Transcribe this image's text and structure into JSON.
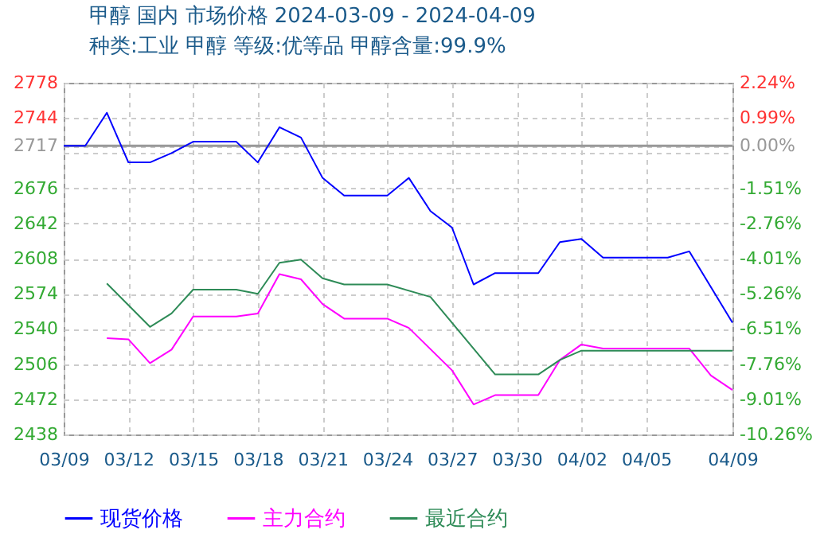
{
  "chart_data": {
    "type": "line",
    "title": "甲醇 国内 市场价格 2024-03-09 - 2024-04-09",
    "subtitle": "种类:工业 甲醇 等级:优等品 甲醇含量:99.9%",
    "series": [
      {
        "name": "现货价格",
        "color": "#0000ff",
        "x": [
          "2024-03-09",
          "2024-03-10",
          "2024-03-11",
          "2024-03-12",
          "2024-03-13",
          "2024-03-14",
          "2024-03-15",
          "2024-03-17",
          "2024-03-18",
          "2024-03-19",
          "2024-03-20",
          "2024-03-21",
          "2024-03-22",
          "2024-03-24",
          "2024-03-25",
          "2024-03-26",
          "2024-03-27",
          "2024-03-28",
          "2024-03-29",
          "2024-03-31",
          "2024-04-01",
          "2024-04-02",
          "2024-04-03",
          "2024-04-06",
          "2024-04-07",
          "2024-04-09"
        ],
        "values": [
          2717,
          2717,
          2749,
          2701,
          2701,
          2710,
          2721,
          2721,
          2701,
          2735,
          2725,
          2686,
          2669,
          2669,
          2686,
          2654,
          2638,
          2583,
          2594,
          2594,
          2624,
          2627,
          2609,
          2609,
          2615,
          2546
        ]
      },
      {
        "name": "主力合约",
        "color": "#ff00ff",
        "x": [
          "2024-03-11",
          "2024-03-12",
          "2024-03-13",
          "2024-03-14",
          "2024-03-15",
          "2024-03-17",
          "2024-03-18",
          "2024-03-19",
          "2024-03-20",
          "2024-03-21",
          "2024-03-22",
          "2024-03-24",
          "2024-03-25",
          "2024-03-27",
          "2024-03-28",
          "2024-03-29",
          "2024-03-31",
          "2024-04-01",
          "2024-04-02",
          "2024-04-03",
          "2024-04-07",
          "2024-04-08",
          "2024-04-09"
        ],
        "values": [
          2531,
          2530,
          2507,
          2520,
          2552,
          2552,
          2555,
          2593,
          2588,
          2564,
          2550,
          2550,
          2541,
          2500,
          2467,
          2476,
          2476,
          2510,
          2525,
          2521,
          2521,
          2495,
          2481
        ]
      },
      {
        "name": "最近合约",
        "color": "#2e8b57",
        "x": [
          "2024-03-11",
          "2024-03-13",
          "2024-03-14",
          "2024-03-15",
          "2024-03-17",
          "2024-03-18",
          "2024-03-19",
          "2024-03-20",
          "2024-03-21",
          "2024-03-22",
          "2024-03-24",
          "2024-03-26",
          "2024-03-29",
          "2024-03-31",
          "2024-04-01",
          "2024-04-02",
          "2024-04-09"
        ],
        "values": [
          2584,
          2542,
          2555,
          2578,
          2578,
          2574,
          2604,
          2607,
          2589,
          2583,
          2583,
          2571,
          2496,
          2496,
          2510,
          2519,
          2519
        ]
      }
    ],
    "xlim": [
      "2024-03-09",
      "2024-04-09"
    ],
    "xticks": [
      {
        "value": "2024-03-09",
        "label": "03/09"
      },
      {
        "value": "2024-03-12",
        "label": "03/12"
      },
      {
        "value": "2024-03-15",
        "label": "03/15"
      },
      {
        "value": "2024-03-18",
        "label": "03/18"
      },
      {
        "value": "2024-03-21",
        "label": "03/21"
      },
      {
        "value": "2024-03-24",
        "label": "03/24"
      },
      {
        "value": "2024-03-27",
        "label": "03/27"
      },
      {
        "value": "2024-03-30",
        "label": "03/30"
      },
      {
        "value": "2024-04-02",
        "label": "04/02"
      },
      {
        "value": "2024-04-05",
        "label": "04/05"
      },
      {
        "value": "2024-04-09",
        "label": "04/09"
      }
    ],
    "ylim": [
      2438,
      2778
    ],
    "yticks": [
      2438,
      2472,
      2506,
      2540,
      2574,
      2608,
      2642,
      2676,
      {
        "value": 2710,
        "label": null
      },
      2717,
      2744,
      2778
    ],
    "y2lim": [
      -10.26,
      2.24
    ],
    "y2ticks": [
      {
        "value": -10.26,
        "label": "-10.26%"
      },
      {
        "value": -9.01,
        "label": "-9.01%"
      },
      {
        "value": -7.76,
        "label": "-7.76%"
      },
      {
        "value": -6.51,
        "label": "-6.51%"
      },
      {
        "value": -5.26,
        "label": "-5.26%"
      },
      {
        "value": -4.01,
        "label": "-4.01%"
      },
      {
        "value": -2.76,
        "label": "-2.76%"
      },
      {
        "value": -1.51,
        "label": "-1.51%"
      },
      {
        "value": 0,
        "label": "0.00%"
      },
      {
        "value": 0.99,
        "label": "0.99%"
      },
      {
        "value": 2.24,
        "label": "2.24%"
      }
    ],
    "ref_lines": [
      {
        "axis": "y",
        "value": 2717,
        "color": "#999999"
      }
    ],
    "grid": true,
    "legend": "bottom",
    "line_style": "solid",
    "marker": "none"
  }
}
